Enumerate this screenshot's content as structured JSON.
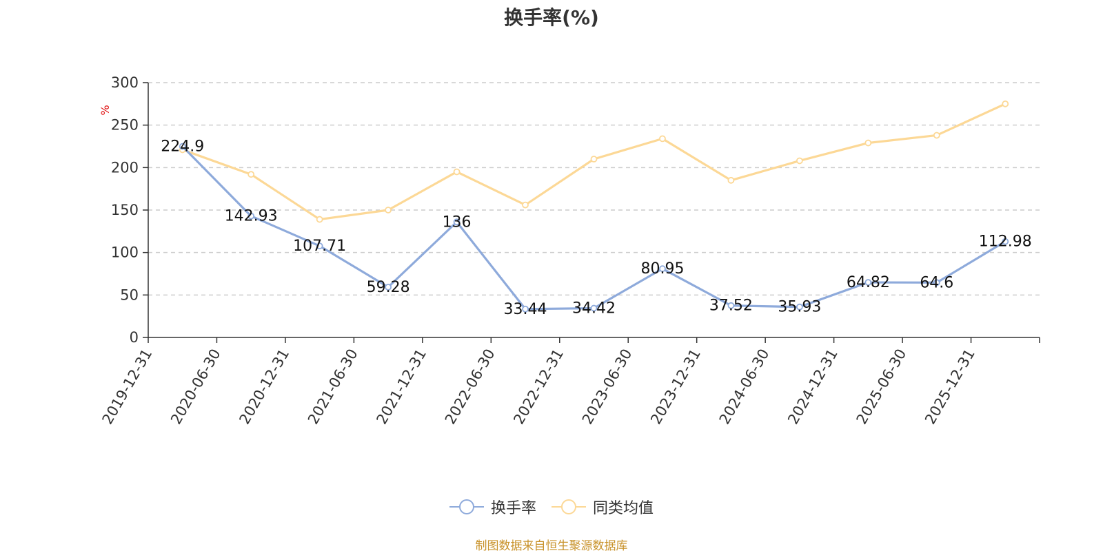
{
  "chart_data": {
    "type": "line",
    "title": "换手率(%)",
    "ylabel": "%",
    "categories": [
      "2019-12-31",
      "2020-06-30",
      "2020-12-31",
      "2021-06-30",
      "2021-12-31",
      "2022-06-30",
      "2022-12-31",
      "2023-06-30",
      "2023-12-31",
      "2024-06-30",
      "2024-12-31",
      "2025-06-30",
      "2025-12-31"
    ],
    "series": [
      {
        "name": "换手率",
        "color": "#8eaadb",
        "show_labels": true,
        "values": [
          224.9,
          142.93,
          107.71,
          59.28,
          136,
          33.44,
          34.42,
          80.95,
          37.52,
          35.93,
          64.82,
          64.6,
          112.98
        ]
      },
      {
        "name": "同类均值",
        "color": "#fcd896",
        "show_labels": false,
        "values": [
          221,
          192,
          139,
          150,
          195,
          156,
          210,
          234,
          185,
          208,
          229,
          238,
          275
        ]
      }
    ],
    "ylim": [
      0,
      300
    ],
    "yticks": [
      0,
      50,
      100,
      150,
      200,
      250,
      300
    ],
    "grid": true,
    "legend_position": "bottom",
    "source_note": "制图数据来自恒生聚源数据库"
  }
}
